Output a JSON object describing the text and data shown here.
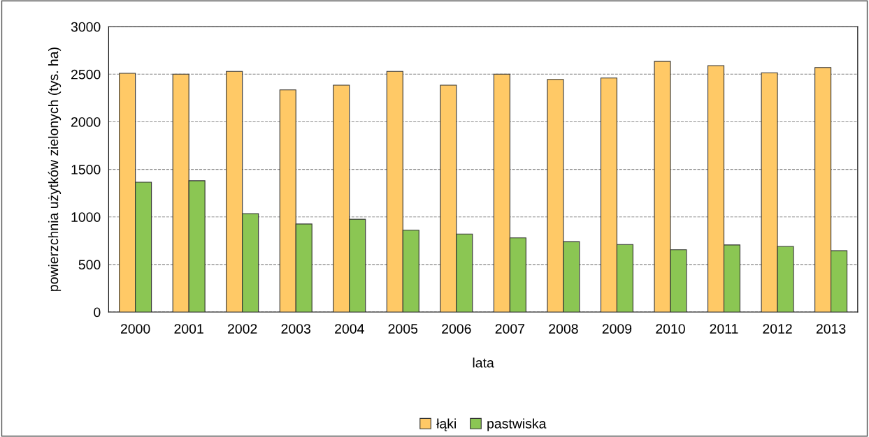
{
  "chart_data": {
    "type": "bar",
    "xlabel": "lata",
    "ylabel": "powierzchnia użytków zielonych (tys. ha)",
    "categories": [
      "2000",
      "2001",
      "2002",
      "2003",
      "2004",
      "2005",
      "2006",
      "2007",
      "2008",
      "2009",
      "2010",
      "2011",
      "2012",
      "2013"
    ],
    "series": [
      {
        "name": "łąki",
        "color": "#ffc966",
        "values": [
          2510,
          2500,
          2530,
          2335,
          2385,
          2530,
          2385,
          2500,
          2445,
          2460,
          2635,
          2590,
          2515,
          2570
        ]
      },
      {
        "name": "pastwiska",
        "color": "#8bc653",
        "values": [
          1365,
          1380,
          1035,
          925,
          975,
          860,
          820,
          780,
          740,
          710,
          655,
          705,
          690,
          645
        ]
      }
    ],
    "ylim": [
      0,
      3000
    ],
    "yticks": [
      0,
      500,
      1000,
      1500,
      2000,
      2500,
      3000
    ],
    "grid": "y",
    "legend": "bottom"
  }
}
